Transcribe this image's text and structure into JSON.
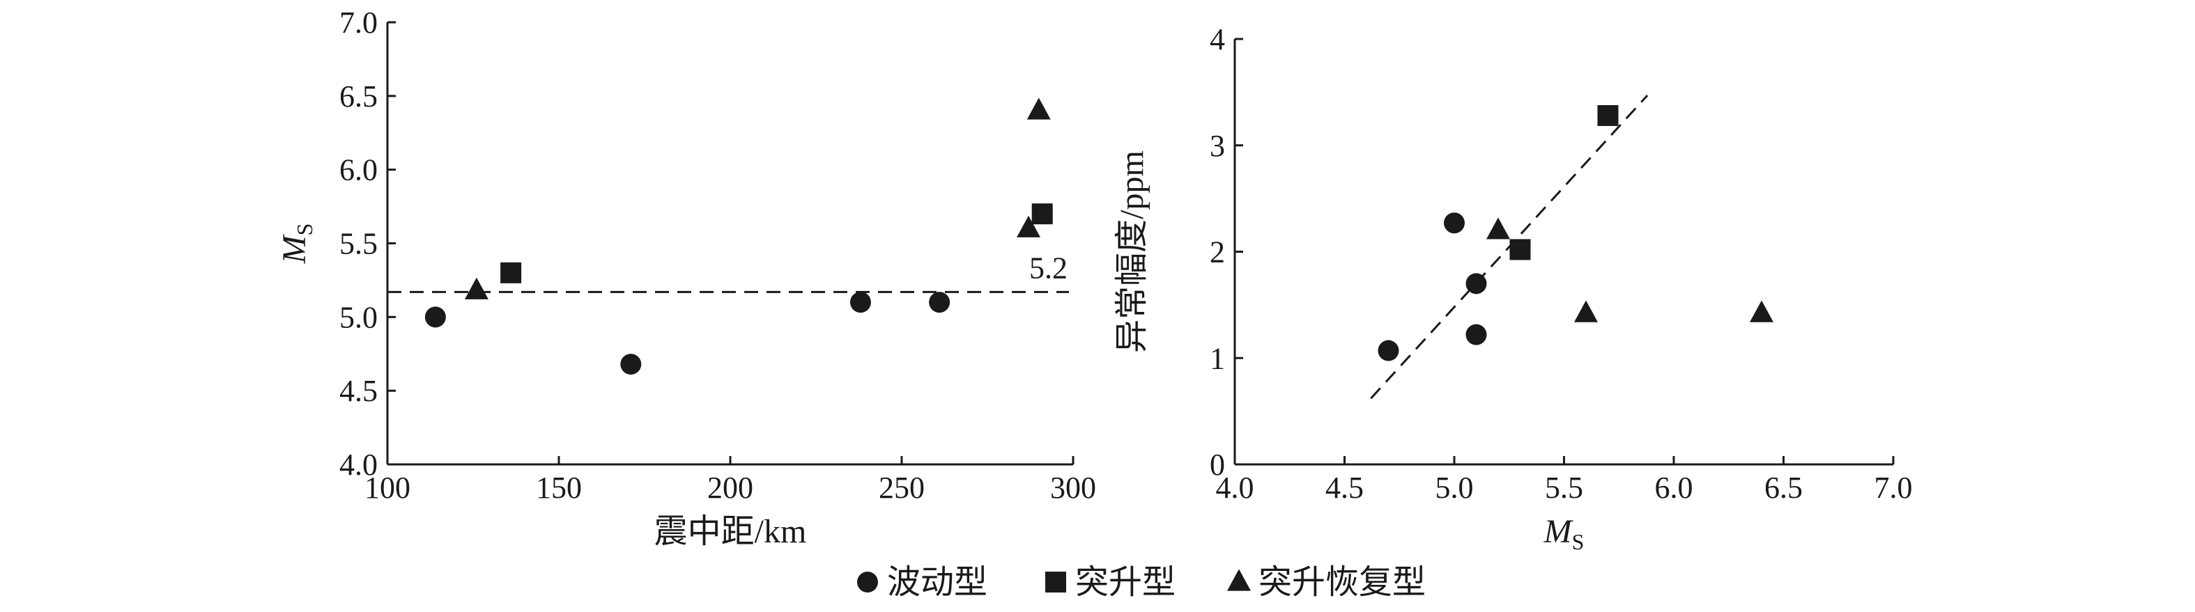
{
  "chart_data": [
    {
      "type": "scatter",
      "xlabel": "震中距/km",
      "ylabel": {
        "var": "M",
        "sub": "S"
      },
      "xlim": [
        100,
        300
      ],
      "ylim": [
        4.0,
        7.0
      ],
      "xticks": [
        "100",
        "150",
        "200",
        "250",
        "300"
      ],
      "yticks": [
        "4.0",
        "4.5",
        "5.0",
        "5.5",
        "6.0",
        "6.5",
        "7.0"
      ],
      "reference_line": {
        "y": 5.17,
        "style": "dashed",
        "label": "5.2"
      },
      "series": [
        {
          "name": "波动型",
          "marker": "circle",
          "points": [
            [
              114,
              5.0
            ],
            [
              171,
              4.68
            ],
            [
              238,
              5.1
            ],
            [
              261,
              5.1
            ]
          ]
        },
        {
          "name": "突升型",
          "marker": "square",
          "points": [
            [
              136,
              5.3
            ],
            [
              291,
              5.7
            ]
          ]
        },
        {
          "name": "突升恢复型",
          "marker": "triangle",
          "points": [
            [
              126,
              5.18
            ],
            [
              287,
              5.6
            ],
            [
              290,
              6.4
            ]
          ]
        }
      ]
    },
    {
      "type": "scatter",
      "xlabel": {
        "var": "M",
        "sub": "S"
      },
      "ylabel": "异常幅度/ppm",
      "xlim": [
        4.0,
        7.0
      ],
      "ylim": [
        0,
        4
      ],
      "xticks": [
        "4.0",
        "4.5",
        "5.0",
        "5.5",
        "6.0",
        "6.5",
        "7.0"
      ],
      "yticks": [
        "0",
        "1",
        "2",
        "3",
        "4"
      ],
      "fit_line": {
        "x": [
          4.62,
          5.88
        ],
        "y": [
          0.62,
          3.47
        ],
        "style": "dashed"
      },
      "series": [
        {
          "name": "波动型",
          "marker": "circle",
          "points": [
            [
              4.7,
              1.07
            ],
            [
              5.0,
              2.27
            ],
            [
              5.1,
              1.7
            ],
            [
              5.1,
              1.22
            ]
          ]
        },
        {
          "name": "突升型",
          "marker": "square",
          "points": [
            [
              5.3,
              2.02
            ],
            [
              5.7,
              3.28
            ]
          ]
        },
        {
          "name": "突升恢复型",
          "marker": "triangle",
          "points": [
            [
              5.2,
              2.2
            ],
            [
              5.6,
              1.42
            ],
            [
              6.4,
              1.42
            ]
          ]
        }
      ]
    }
  ],
  "legend": {
    "position": "bottom-center",
    "items": [
      {
        "label": "波动型",
        "marker": "circle"
      },
      {
        "label": "突升型",
        "marker": "square"
      },
      {
        "label": "突升恢复型",
        "marker": "triangle"
      }
    ]
  },
  "colors": {
    "ink": "#1a1a1a",
    "background": "#ffffff"
  }
}
